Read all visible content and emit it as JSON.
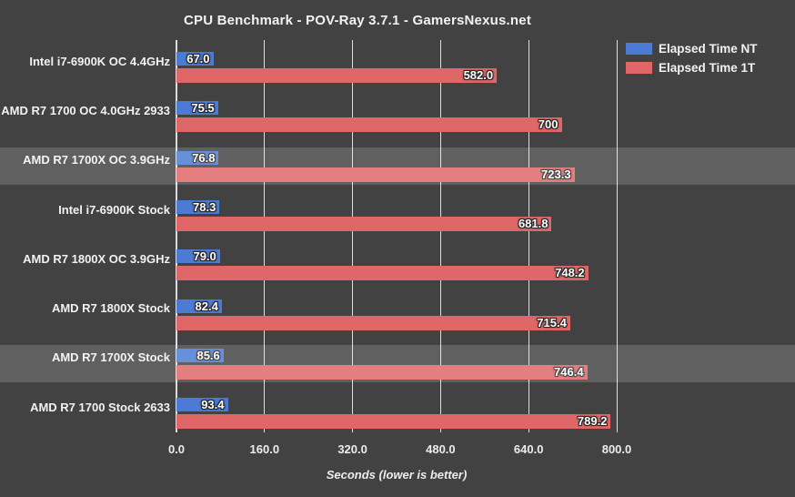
{
  "colors": {
    "background": "#424242",
    "row_highlight": "rgba(255,255,255,0.16)",
    "gridline": "rgba(255,255,255,0.82)",
    "text": "#F2F2F2",
    "series_nt": "#4B7BD5",
    "series_1t": "#E06767"
  },
  "legend": {
    "position": "top-right",
    "entries": [
      {
        "label": "Elapsed Time NT",
        "color": "#4B7BD5"
      },
      {
        "label": "Elapsed Time 1T",
        "color": "#E06767"
      }
    ]
  },
  "chart_data": {
    "type": "bar",
    "orientation": "horizontal",
    "title": "CPU Benchmark - POV-Ray 3.7.1 - GamersNexus.net",
    "xlabel": "Seconds (lower is better)",
    "ylabel": "",
    "xlim": [
      0,
      800
    ],
    "xticks": [
      0,
      160,
      320,
      480,
      640,
      800
    ],
    "xtick_labels": [
      "0.0",
      "160.0",
      "320.0",
      "480.0",
      "640.0",
      "800.0"
    ],
    "grid": true,
    "lower_is_better": true,
    "categories": [
      "Intel i7-6900K OC 4.4GHz",
      "AMD R7 1700 OC 4.0GHz 2933",
      "AMD R7 1700X OC 3.9GHz",
      "Intel i7-6900K Stock",
      "AMD R7 1800X OC 3.9GHz",
      "AMD R7 1800X Stock",
      "AMD R7 1700X Stock",
      "AMD R7 1700 Stock 2633"
    ],
    "highlighted_rows": [
      2,
      6
    ],
    "series": [
      {
        "name": "Elapsed Time NT",
        "color": "#4B7BD5",
        "values": [
          67.0,
          75.5,
          76.8,
          78.3,
          79.0,
          82.4,
          85.6,
          93.4
        ],
        "labels": [
          "67.0",
          "75.5",
          "76.8",
          "78.3",
          "79.0",
          "82.4",
          "85.6",
          "93.4"
        ]
      },
      {
        "name": "Elapsed Time 1T",
        "color": "#E06767",
        "values": [
          582.0,
          700,
          723.3,
          681.8,
          748.2,
          715.4,
          746.4,
          789.2
        ],
        "labels": [
          "582.0",
          "700",
          "723.3",
          "681.8",
          "748.2",
          "715.4",
          "746.4",
          "789.2"
        ]
      }
    ]
  }
}
